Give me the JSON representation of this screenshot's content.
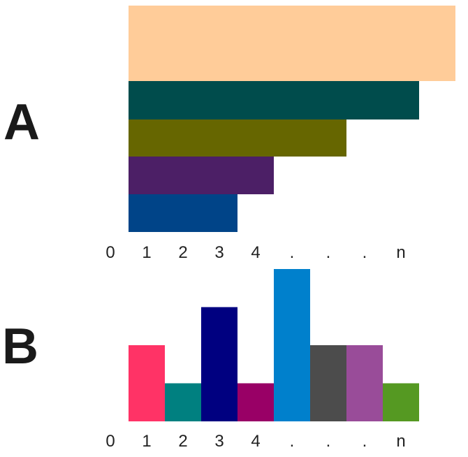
{
  "chart_data": [
    {
      "type": "bar",
      "orientation": "horizontal",
      "panel_label": "A",
      "x_tick_labels": [
        "0",
        "1",
        "2",
        "3",
        "4",
        ".",
        ".",
        ".",
        "n"
      ],
      "bars": [
        {
          "value": 9,
          "color": "#FFCC99"
        },
        {
          "value": 8,
          "color": "#004C4C"
        },
        {
          "value": 6,
          "color": "#666600"
        },
        {
          "value": 4,
          "color": "#4C1F66"
        },
        {
          "value": 3,
          "color": "#004488"
        }
      ],
      "xlim": [
        0,
        9
      ],
      "grid": false
    },
    {
      "type": "bar",
      "orientation": "vertical",
      "panel_label": "B",
      "categories": [
        "0",
        "1",
        "2",
        "3",
        "4",
        ".",
        ".",
        ".",
        "n"
      ],
      "values": [
        0,
        2,
        1,
        3,
        1,
        4,
        2,
        2,
        1
      ],
      "colors": [
        "#FFFFFF",
        "#FF3366",
        "#008080",
        "#000080",
        "#990066",
        "#0080CC",
        "#4C4C4C",
        "#994C99",
        "#559922"
      ],
      "ylim": [
        0,
        4
      ],
      "grid": false
    }
  ]
}
